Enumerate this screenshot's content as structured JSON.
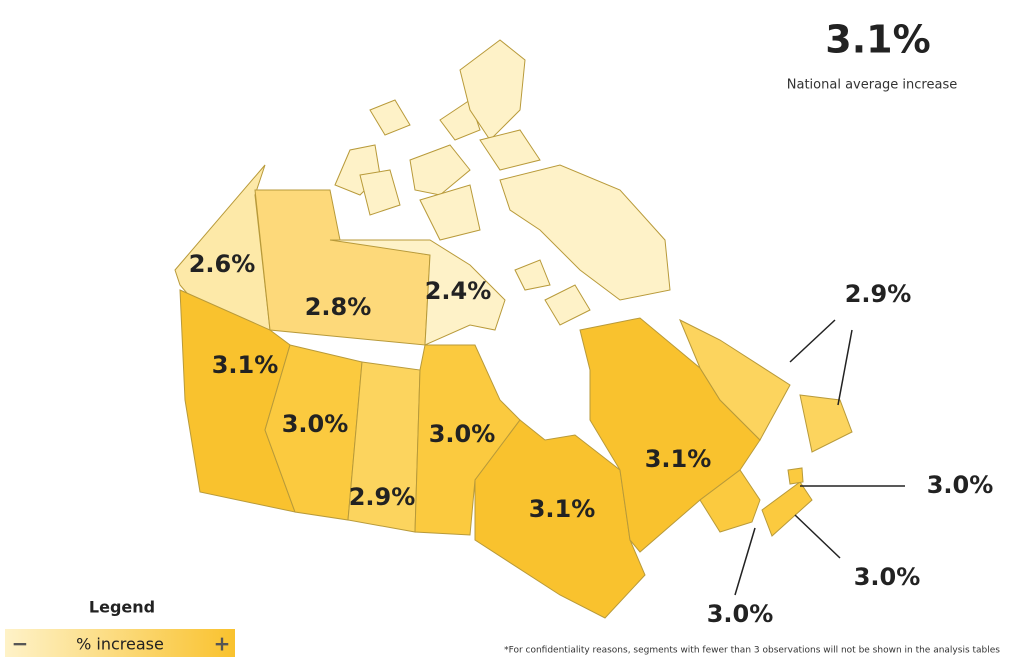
{
  "national": {
    "value": "3.1%",
    "label": "National average increase"
  },
  "regions": [
    {
      "label": "2.6%",
      "color": "#fde9a8"
    },
    {
      "label": "2.8%",
      "color": "#fdd97a"
    },
    {
      "label": "2.4%",
      "color": "#fef2c8"
    },
    {
      "label": "3.1%",
      "color": "#f9c22e"
    },
    {
      "label": "3.0%",
      "color": "#fbca3f"
    },
    {
      "label": "2.9%",
      "color": "#fcd45e"
    },
    {
      "label": "3.0%",
      "color": "#fbca3f"
    },
    {
      "label": "3.1%",
      "color": "#f9c22e"
    },
    {
      "label": "3.1%",
      "color": "#f9c22e"
    },
    {
      "label": "2.9%",
      "color": "#fcd45e"
    },
    {
      "label": "3.0%",
      "color": "#fbca3f"
    },
    {
      "label": "3.0%",
      "color": "#fbca3f"
    },
    {
      "label": "3.0%",
      "color": "#fbca3f"
    }
  ],
  "legend": {
    "title": "Legend",
    "scale_label": "% increase",
    "min_symbol": "−",
    "max_symbol": "+"
  },
  "footnote": "*For confidentiality reasons, segments with fewer than 3 observations will not be shown in the analysis tables"
}
